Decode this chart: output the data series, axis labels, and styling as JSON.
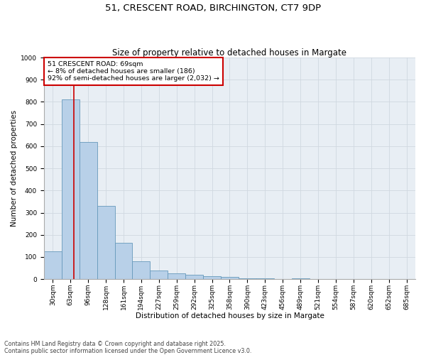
{
  "title1": "51, CRESCENT ROAD, BIRCHINGTON, CT7 9DP",
  "title2": "Size of property relative to detached houses in Margate",
  "xlabel": "Distribution of detached houses by size in Margate",
  "ylabel": "Number of detached properties",
  "categories": [
    "30sqm",
    "63sqm",
    "96sqm",
    "128sqm",
    "161sqm",
    "194sqm",
    "227sqm",
    "259sqm",
    "292sqm",
    "325sqm",
    "358sqm",
    "390sqm",
    "423sqm",
    "456sqm",
    "489sqm",
    "521sqm",
    "554sqm",
    "587sqm",
    "620sqm",
    "652sqm",
    "685sqm"
  ],
  "values": [
    125,
    810,
    620,
    330,
    165,
    80,
    40,
    25,
    20,
    15,
    10,
    5,
    5,
    0,
    5,
    0,
    0,
    0,
    0,
    0,
    0
  ],
  "bar_color": "#b8d0e8",
  "bar_edge_color": "#6699bb",
  "bar_edge_width": 0.6,
  "red_line_x": 1.18,
  "annotation_box_text": "51 CRESCENT ROAD: 69sqm\n← 8% of detached houses are smaller (186)\n92% of semi-detached houses are larger (2,032) →",
  "annotation_box_color": "#cc0000",
  "annotation_box_facecolor": "white",
  "ylim": [
    0,
    1000
  ],
  "yticks": [
    0,
    100,
    200,
    300,
    400,
    500,
    600,
    700,
    800,
    900,
    1000
  ],
  "grid_color": "#d0d8e0",
  "bg_color": "#e8eef4",
  "footer1": "Contains HM Land Registry data © Crown copyright and database right 2025.",
  "footer2": "Contains public sector information licensed under the Open Government Licence v3.0.",
  "title1_fontsize": 9.5,
  "title2_fontsize": 8.5,
  "xlabel_fontsize": 7.5,
  "ylabel_fontsize": 7.5,
  "tick_fontsize": 6.5,
  "annotation_fontsize": 6.8,
  "footer_fontsize": 5.8
}
